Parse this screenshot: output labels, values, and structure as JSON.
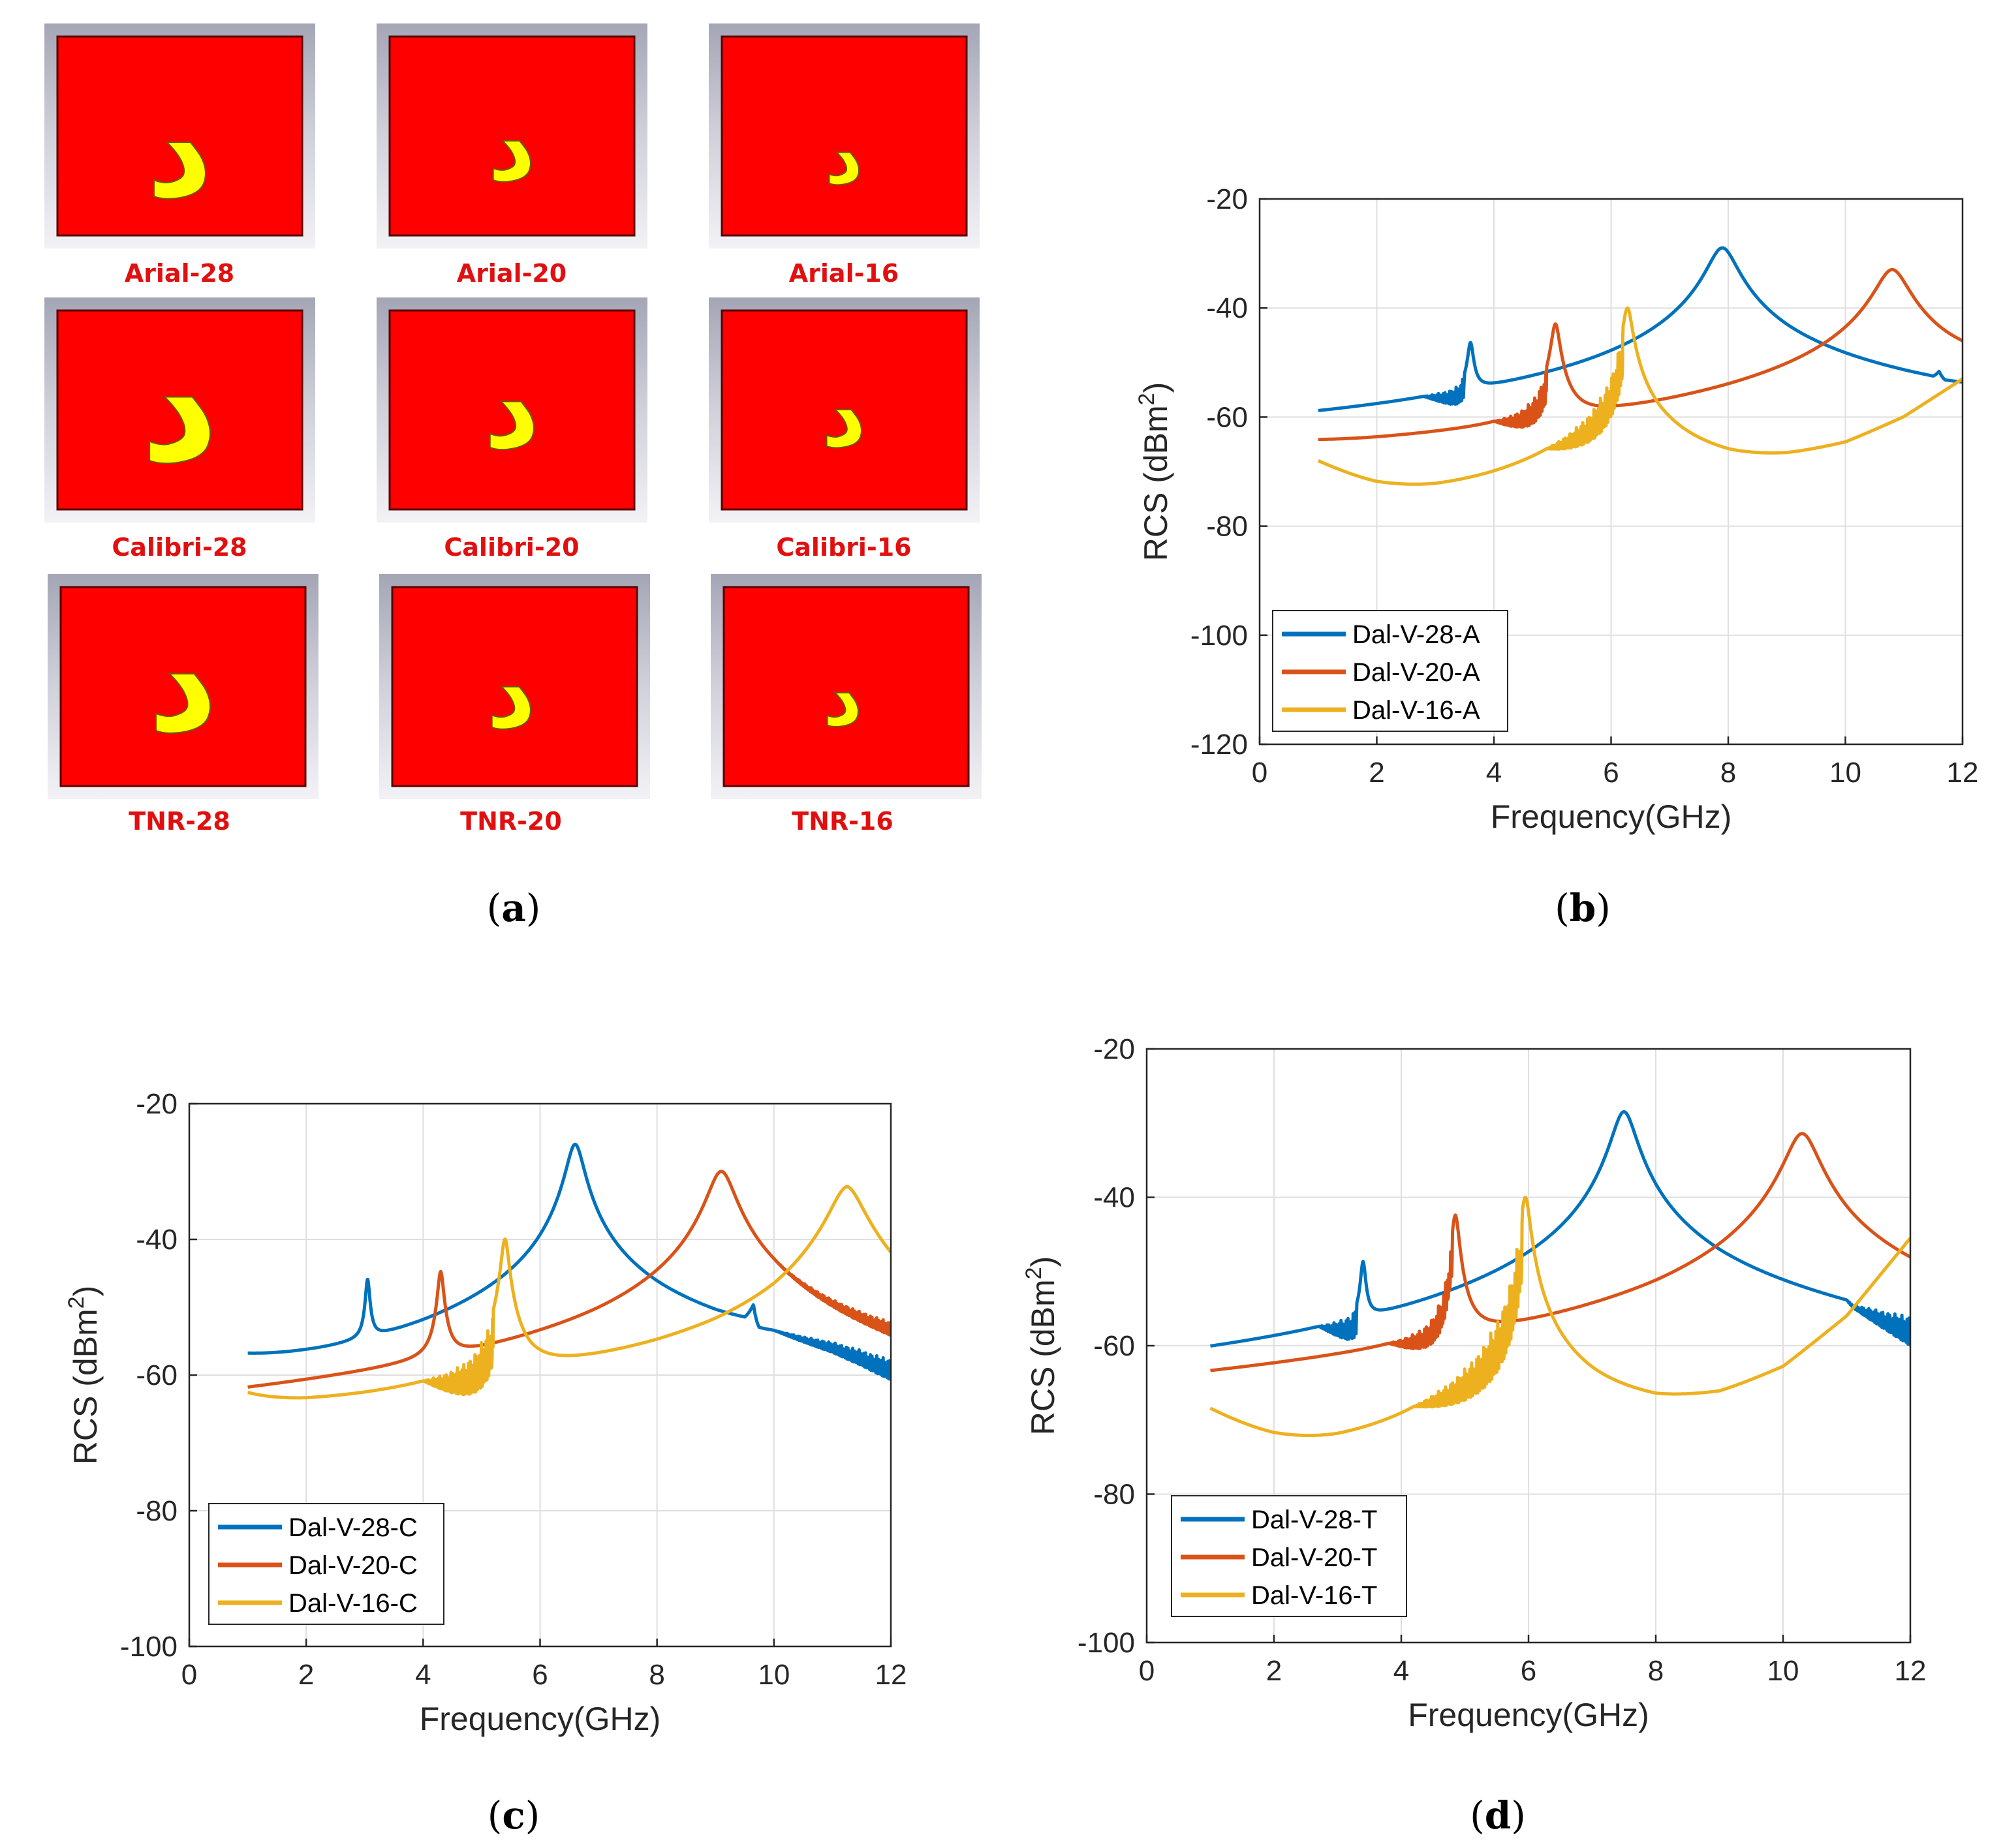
{
  "panel_a": {
    "glyph": "د",
    "tiles": [
      {
        "label": "Arial-28",
        "size": 28
      },
      {
        "label": "Arial-20",
        "size": 20
      },
      {
        "label": "Arial-16",
        "size": 16
      },
      {
        "label": "Calibri-28",
        "size": 28
      },
      {
        "label": "Calibri-20",
        "size": 20
      },
      {
        "label": "Calibri-16",
        "size": 16
      },
      {
        "label": "TNR-28",
        "size": 28
      },
      {
        "label": "TNR-20",
        "size": 20
      },
      {
        "label": "TNR-16",
        "size": 16
      }
    ],
    "colors": {
      "background": "#ff0000",
      "glyph": "#ffff00",
      "label": "#e01010"
    }
  },
  "captions": {
    "a": {
      "open": "(",
      "letter": "a",
      "close": ")"
    },
    "b": {
      "open": "(",
      "letter": "b",
      "close": ")"
    },
    "c": {
      "open": "(",
      "letter": "c",
      "close": ")"
    },
    "d": {
      "open": "(",
      "letter": "d",
      "close": ")"
    }
  },
  "chart_data": [
    {
      "id": "b",
      "type": "line",
      "xlabel": "Frequency(GHz)",
      "ylabel": "RCS (dBm",
      "ylabel_sup": "2",
      "ylabel_close": ")",
      "xlim": [
        0,
        12
      ],
      "ylim": [
        -120,
        -20
      ],
      "xticks": [
        0,
        2,
        4,
        6,
        8,
        10,
        12
      ],
      "yticks": [
        -120,
        -100,
        -80,
        -60,
        -40,
        -20
      ],
      "grid": true,
      "legend": "bottom-left",
      "series": [
        {
          "name": "Dal-V-28-A",
          "color": "#0072bd",
          "baseline": [
            [
              1,
              -74
            ],
            [
              2,
              -77
            ],
            [
              3,
              -80
            ],
            [
              3.6,
              -80
            ],
            [
              4,
              -76
            ],
            [
              5,
              -73
            ],
            [
              6,
              -67
            ],
            [
              7,
              -57
            ],
            [
              7.9,
              -50
            ],
            [
              8.2,
              -52
            ],
            [
              9,
              -56
            ],
            [
              10,
              -58
            ],
            [
              11,
              -59.5
            ],
            [
              11.5,
              -60
            ],
            [
              11.6,
              -56
            ],
            [
              11.7,
              -62
            ],
            [
              12,
              -61
            ]
          ],
          "resonances": [
            {
              "f": 3.6,
              "peak": -47,
              "q": 40
            },
            {
              "f": 7.9,
              "peak": -29,
              "q": 18
            }
          ],
          "noise": [
            {
              "from": 2.8,
              "to": 3.5,
              "amp": 4
            }
          ]
        },
        {
          "name": "Dal-V-20-A",
          "color": "#d95319",
          "baseline": [
            [
              1,
              -72
            ],
            [
              2,
              -76
            ],
            [
              3,
              -79
            ],
            [
              4,
              -82
            ],
            [
              4.6,
              -83
            ],
            [
              5,
              -80
            ],
            [
              6,
              -71
            ],
            [
              7,
              -69
            ],
            [
              8,
              -66
            ],
            [
              9,
              -62
            ],
            [
              10,
              -57
            ],
            [
              10.8,
              -53
            ],
            [
              11.2,
              -55
            ],
            [
              12,
              -53
            ]
          ],
          "resonances": [
            {
              "f": 5.05,
              "peak": -43,
              "q": 40
            },
            {
              "f": 10.8,
              "peak": -33,
              "q": 22
            }
          ],
          "noise": [
            {
              "from": 4.0,
              "to": 4.9,
              "amp": 6
            }
          ]
        },
        {
          "name": "Dal-V-16-A",
          "color": "#edb120",
          "baseline": [
            [
              1,
              -68.5
            ],
            [
              2,
              -74
            ],
            [
              3,
              -78
            ],
            [
              4,
              -80
            ],
            [
              5,
              -81
            ],
            [
              5.6,
              -82
            ],
            [
              6,
              -80
            ],
            [
              6.3,
              -75
            ],
            [
              7,
              -70
            ],
            [
              8,
              -70
            ],
            [
              9,
              -68
            ],
            [
              10,
              -65
            ],
            [
              11,
              -60
            ],
            [
              12,
              -53
            ]
          ],
          "resonances": [
            {
              "f": 6.28,
              "peak": -40,
              "q": 45
            }
          ],
          "noise": [
            {
              "from": 4.9,
              "to": 6.2,
              "amp": 9
            }
          ]
        }
      ]
    },
    {
      "id": "c",
      "type": "line",
      "xlabel": "Frequency(GHz)",
      "ylabel": "RCS (dBm",
      "ylabel_sup": "2",
      "ylabel_close": ")",
      "xlim": [
        0,
        12
      ],
      "ylim": [
        -100,
        -20
      ],
      "xticks": [
        0,
        2,
        4,
        6,
        8,
        10,
        12
      ],
      "yticks": [
        -100,
        -80,
        -60,
        -40,
        -20
      ],
      "grid": true,
      "legend": "bottom-left",
      "series": [
        {
          "name": "Dal-V-28-C",
          "color": "#0072bd",
          "baseline": [
            [
              1,
              -61.5
            ],
            [
              2,
              -65
            ],
            [
              2.7,
              -68
            ],
            [
              3.05,
              -69
            ],
            [
              4,
              -69
            ],
            [
              5,
              -63
            ],
            [
              6,
              -57
            ],
            [
              6.6,
              -50
            ],
            [
              7,
              -53
            ],
            [
              8,
              -56
            ],
            [
              9,
              -57.5
            ],
            [
              9.5,
              -57
            ],
            [
              9.65,
              -52
            ],
            [
              9.75,
              -62
            ],
            [
              10,
              -61
            ],
            [
              11,
              -61
            ],
            [
              11.5,
              -63
            ],
            [
              12,
              -67
            ]
          ],
          "resonances": [
            {
              "f": 3.05,
              "peak": -46.5,
              "q": 45
            },
            {
              "f": 6.6,
              "peak": -26,
              "q": 25
            }
          ],
          "noise": [
            {
              "from": 10,
              "to": 12,
              "amp": 3
            }
          ]
        },
        {
          "name": "Dal-V-20-C",
          "color": "#d95319",
          "baseline": [
            [
              1,
              -81
            ],
            [
              3,
              -79
            ],
            [
              3.8,
              -76
            ],
            [
              4.3,
              -72
            ],
            [
              5,
              -71
            ],
            [
              6,
              -67
            ],
            [
              7,
              -64
            ],
            [
              8,
              -58
            ],
            [
              9,
              -52
            ],
            [
              9.1,
              -52
            ],
            [
              9.5,
              -54
            ],
            [
              10,
              -57
            ],
            [
              11,
              -59
            ],
            [
              12,
              -60
            ]
          ],
          "resonances": [
            {
              "f": 4.3,
              "peak": -45,
              "q": 45
            },
            {
              "f": 9.1,
              "peak": -30,
              "q": 22
            }
          ],
          "noise": [
            {
              "from": 10,
              "to": 12,
              "amp": 2
            }
          ]
        },
        {
          "name": "Dal-V-16-C",
          "color": "#edb120",
          "baseline": [
            [
              1,
              -66.5
            ],
            [
              2,
              -73
            ],
            [
              3,
              -77
            ],
            [
              4,
              -78
            ],
            [
              5,
              -77
            ],
            [
              5.4,
              -70
            ],
            [
              6,
              -67
            ],
            [
              7,
              -67
            ],
            [
              8,
              -66
            ],
            [
              9,
              -63
            ],
            [
              10,
              -56
            ],
            [
              10.8,
              -46
            ],
            [
              11.25,
              -40
            ],
            [
              11.6,
              -44
            ],
            [
              12,
              -49
            ]
          ],
          "resonances": [
            {
              "f": 5.4,
              "peak": -40,
              "q": 45
            },
            {
              "f": 11.25,
              "peak": -33,
              "q": 22
            }
          ],
          "noise": [
            {
              "from": 4.0,
              "to": 5.2,
              "amp": 8
            }
          ]
        }
      ]
    },
    {
      "id": "d",
      "type": "line",
      "xlabel": "Frequency(GHz)",
      "ylabel": "RCS (dBm",
      "ylabel_sup": "2",
      "ylabel_close": ")",
      "xlim": [
        0,
        12
      ],
      "ylim": [
        -100,
        -20
      ],
      "xticks": [
        0,
        2,
        4,
        6,
        8,
        10,
        12
      ],
      "yticks": [
        -100,
        -80,
        -60,
        -40,
        -20
      ],
      "grid": true,
      "legend": "bottom-left",
      "series": [
        {
          "name": "Dal-V-28-T",
          "color": "#0072bd",
          "baseline": [
            [
              1,
              -77.5
            ],
            [
              2,
              -80
            ],
            [
              3,
              -80
            ],
            [
              3.4,
              -77
            ],
            [
              4,
              -73
            ],
            [
              5,
              -68
            ],
            [
              6,
              -63
            ],
            [
              7,
              -57
            ],
            [
              7.5,
              -50
            ],
            [
              8,
              -53
            ],
            [
              9,
              -57
            ],
            [
              10,
              -59
            ],
            [
              11,
              -61
            ],
            [
              11.1,
              -64
            ],
            [
              12,
              -63
            ]
          ],
          "resonances": [
            {
              "f": 3.4,
              "peak": -49.5,
              "q": 45
            },
            {
              "f": 7.5,
              "peak": -28.5,
              "q": 22
            }
          ],
          "noise": [
            {
              "from": 2.7,
              "to": 3.3,
              "amp": 4
            },
            {
              "from": 11.0,
              "to": 12,
              "amp": 4
            }
          ]
        },
        {
          "name": "Dal-V-20-T",
          "color": "#d95319",
          "baseline": [
            [
              1,
              -84
            ],
            [
              3,
              -80
            ],
            [
              4,
              -78
            ],
            [
              4.85,
              -73
            ],
            [
              5.5,
              -71
            ],
            [
              6,
              -70
            ],
            [
              7,
              -67
            ],
            [
              8,
              -64
            ],
            [
              9,
              -58
            ],
            [
              10,
              -50
            ],
            [
              10.3,
              -48
            ],
            [
              11,
              -53
            ],
            [
              12,
              -56
            ]
          ],
          "resonances": [
            {
              "f": 4.85,
              "peak": -42.5,
              "q": 45
            },
            {
              "f": 10.3,
              "peak": -31.5,
              "q": 22
            }
          ],
          "noise": [
            {
              "from": 3.8,
              "to": 4.8,
              "amp": 5
            }
          ]
        },
        {
          "name": "Dal-V-16-T",
          "color": "#edb120",
          "baseline": [
            [
              1,
              -69
            ],
            [
              2,
              -74
            ],
            [
              3,
              -78
            ],
            [
              4,
              -80
            ],
            [
              5,
              -81
            ],
            [
              5.9,
              -76
            ],
            [
              6.3,
              -68
            ],
            [
              7,
              -69
            ],
            [
              8,
              -69
            ],
            [
              9,
              -67
            ],
            [
              10,
              -63
            ],
            [
              11,
              -56
            ],
            [
              12,
              -45.5
            ]
          ],
          "resonances": [
            {
              "f": 5.95,
              "peak": -40,
              "q": 45
            }
          ],
          "noise": [
            {
              "from": 4.2,
              "to": 5.9,
              "amp": 9
            }
          ]
        }
      ]
    }
  ]
}
